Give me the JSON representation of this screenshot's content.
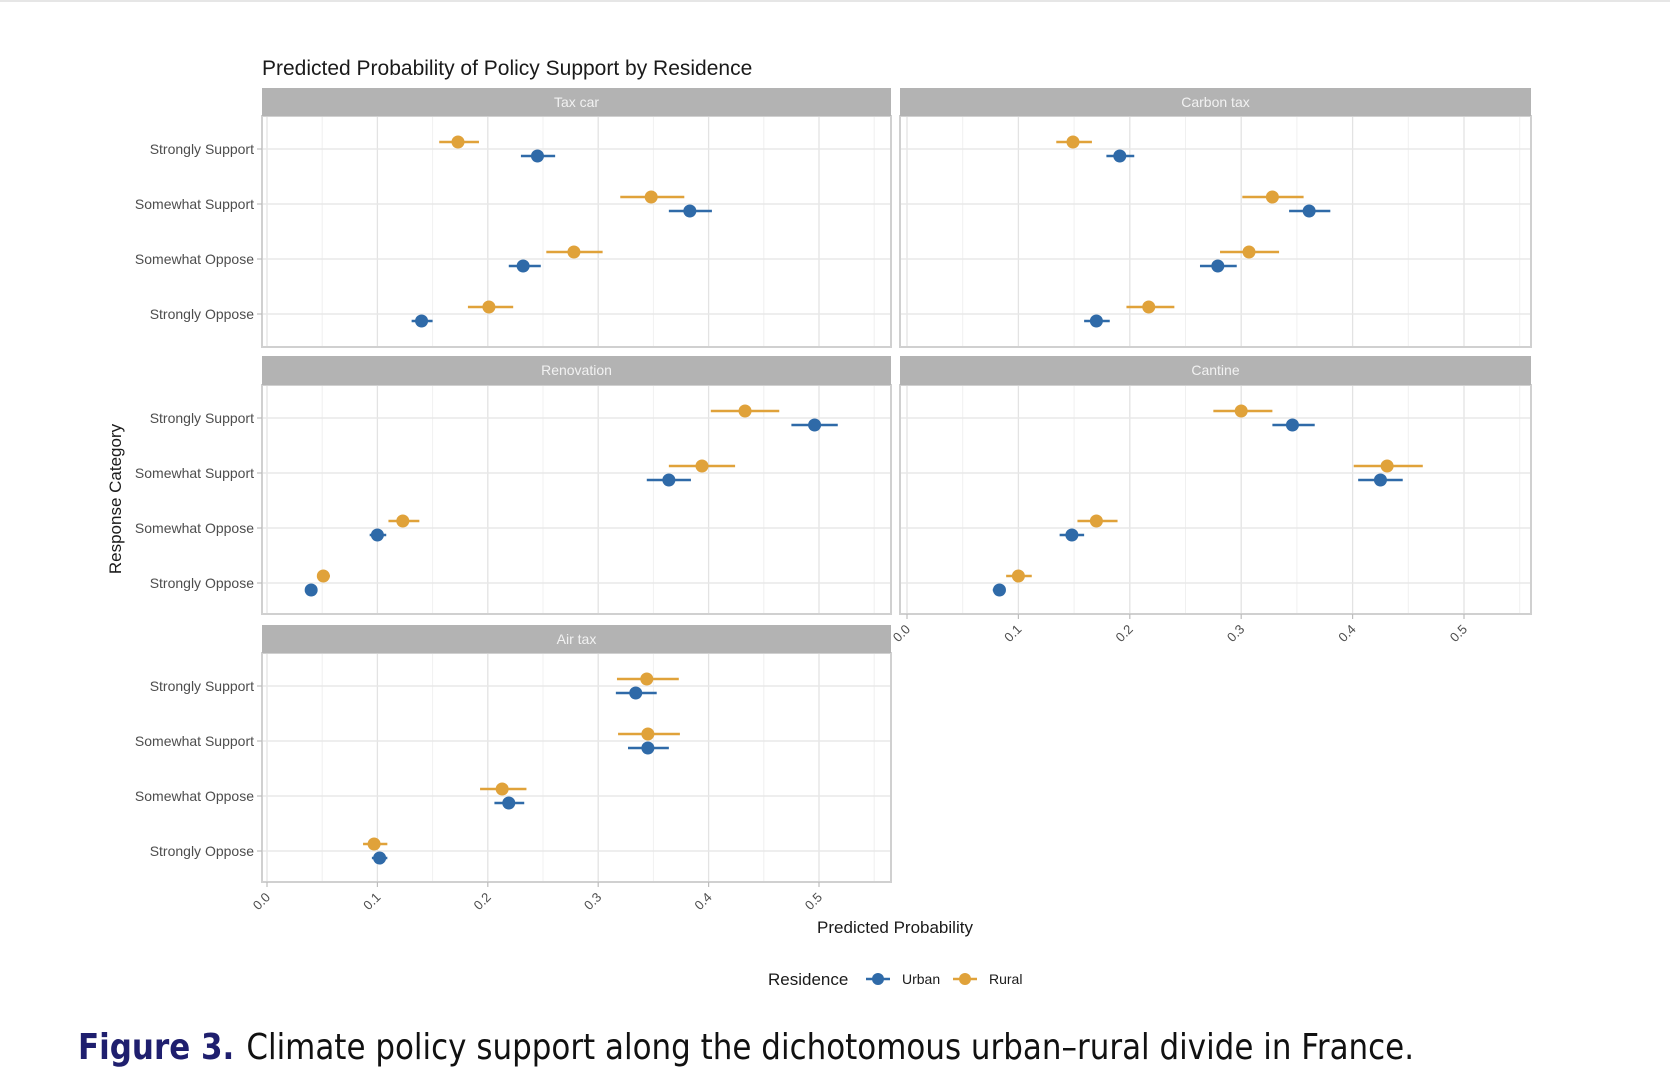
{
  "chart_data": {
    "type": "scatter",
    "subtype": "faceted point-range (dot with confidence interval)",
    "title": "Predicted Probability of Policy Support by Residence",
    "xlabel": "Predicted Probability",
    "ylabel": "Response Category",
    "xlim": [
      0.0,
      0.55
    ],
    "x_ticks": [
      "0.0",
      "0.1",
      "0.2",
      "0.3",
      "0.4",
      "0.5"
    ],
    "categories": [
      "Strongly Support",
      "Somewhat Support",
      "Somewhat Oppose",
      "Strongly Oppose"
    ],
    "grid": true,
    "legend": {
      "title": "Residence",
      "position": "bottom",
      "entries": [
        {
          "name": "Urban",
          "color": "#2f6aa8"
        },
        {
          "name": "Rural",
          "color": "#e0a23a"
        }
      ]
    },
    "panels": [
      {
        "name": "Tax car",
        "series": [
          {
            "name": "Urban",
            "values": [
              0.245,
              0.383,
              0.232,
              0.14
            ],
            "ci_low": [
              0.23,
              0.364,
              0.219,
              0.131
            ],
            "ci_high": [
              0.261,
              0.403,
              0.248,
              0.15
            ]
          },
          {
            "name": "Rural",
            "values": [
              0.173,
              0.348,
              0.278,
              0.201
            ],
            "ci_low": [
              0.156,
              0.32,
              0.253,
              0.182
            ],
            "ci_high": [
              0.192,
              0.378,
              0.304,
              0.223
            ]
          }
        ]
      },
      {
        "name": "Carbon tax",
        "series": [
          {
            "name": "Urban",
            "values": [
              0.191,
              0.361,
              0.279,
              0.17
            ],
            "ci_low": [
              0.179,
              0.343,
              0.263,
              0.159
            ],
            "ci_high": [
              0.204,
              0.38,
              0.296,
              0.182
            ]
          },
          {
            "name": "Rural",
            "values": [
              0.149,
              0.328,
              0.307,
              0.217
            ],
            "ci_low": [
              0.134,
              0.301,
              0.281,
              0.197
            ],
            "ci_high": [
              0.166,
              0.356,
              0.334,
              0.24
            ]
          }
        ]
      },
      {
        "name": "Renovation",
        "series": [
          {
            "name": "Urban",
            "values": [
              0.496,
              0.364,
              0.1,
              0.04
            ],
            "ci_low": [
              0.475,
              0.344,
              0.093,
              0.036
            ],
            "ci_high": [
              0.517,
              0.384,
              0.108,
              0.044
            ]
          },
          {
            "name": "Rural",
            "values": [
              0.433,
              0.394,
              0.123,
              0.051
            ],
            "ci_low": [
              0.402,
              0.364,
              0.11,
              0.046
            ],
            "ci_high": [
              0.464,
              0.424,
              0.138,
              0.057
            ]
          }
        ]
      },
      {
        "name": "Cantine",
        "series": [
          {
            "name": "Urban",
            "values": [
              0.346,
              0.425,
              0.148,
              0.083
            ],
            "ci_low": [
              0.328,
              0.405,
              0.137,
              0.077
            ],
            "ci_high": [
              0.366,
              0.445,
              0.159,
              0.088
            ]
          },
          {
            "name": "Rural",
            "values": [
              0.3,
              0.431,
              0.17,
              0.1
            ],
            "ci_low": [
              0.275,
              0.401,
              0.153,
              0.089
            ],
            "ci_high": [
              0.328,
              0.463,
              0.189,
              0.112
            ]
          }
        ]
      },
      {
        "name": "Air tax",
        "series": [
          {
            "name": "Urban",
            "values": [
              0.334,
              0.345,
              0.219,
              0.102
            ],
            "ci_low": [
              0.316,
              0.327,
              0.206,
              0.095
            ],
            "ci_high": [
              0.353,
              0.364,
              0.233,
              0.109
            ]
          },
          {
            "name": "Rural",
            "values": [
              0.344,
              0.345,
              0.213,
              0.097
            ],
            "ci_low": [
              0.317,
              0.318,
              0.193,
              0.087
            ],
            "ci_high": [
              0.373,
              0.374,
              0.235,
              0.109
            ]
          }
        ]
      }
    ]
  },
  "caption": {
    "label": "Figure 3.",
    "text": "Climate policy support along the dichotomous urban–rural divide in France."
  }
}
